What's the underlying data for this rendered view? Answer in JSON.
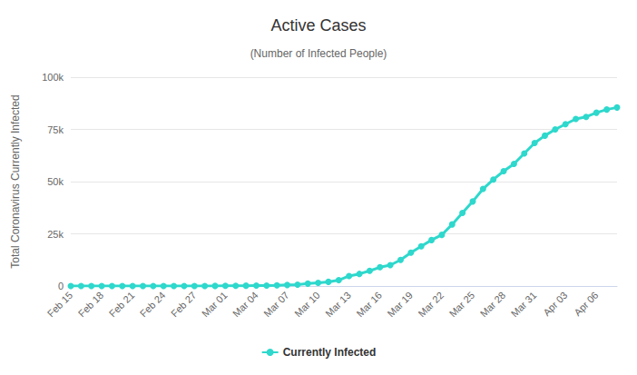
{
  "chart_data": {
    "type": "line",
    "title": "Active Cases",
    "subtitle": "(Number of Infected People)",
    "y_label": "Total Coronavirus Currently Infected",
    "categories": [
      "Feb 15",
      null,
      null,
      "Feb 18",
      null,
      null,
      "Feb 21",
      null,
      null,
      "Feb 24",
      null,
      null,
      "Feb 27",
      null,
      null,
      "Mar 01",
      null,
      null,
      "Mar 04",
      null,
      null,
      "Mar 07",
      null,
      null,
      "Mar 10",
      null,
      null,
      "Mar 13",
      null,
      null,
      "Mar 16",
      null,
      null,
      "Mar 19",
      null,
      null,
      "Mar 22",
      null,
      null,
      "Mar 25",
      null,
      null,
      "Mar 28",
      null,
      null,
      "Mar 31",
      null,
      null,
      "Apr 03",
      null,
      null,
      "Apr 06",
      null,
      null
    ],
    "series": [
      {
        "name": "Currently Infected",
        "color": "#2ed8cc",
        "marker": "circle",
        "values": [
          2,
          2,
          2,
          2,
          2,
          2,
          2,
          2,
          2,
          2,
          5,
          11,
          15,
          30,
          43,
          81,
          112,
          160,
          220,
          250,
          360,
          500,
          620,
          1150,
          1550,
          2000,
          2800,
          4800,
          5800,
          7300,
          9000,
          10000,
          12500,
          16000,
          19000,
          22000,
          24500,
          29500,
          35000,
          40500,
          46500,
          51000,
          55000,
          58500,
          63500,
          68500,
          72000,
          75000,
          77500,
          80000,
          81000,
          83000,
          84500,
          85500
        ]
      }
    ],
    "ylim": [
      0,
      100000
    ],
    "yticks": [
      0,
      {
        "value": 25000,
        "label": "25k"
      },
      {
        "value": 50000,
        "label": "50k"
      },
      {
        "value": 75000,
        "label": "75k"
      },
      {
        "value": 100000,
        "label": "100k"
      }
    ],
    "grid": true,
    "legend": "bottom"
  }
}
